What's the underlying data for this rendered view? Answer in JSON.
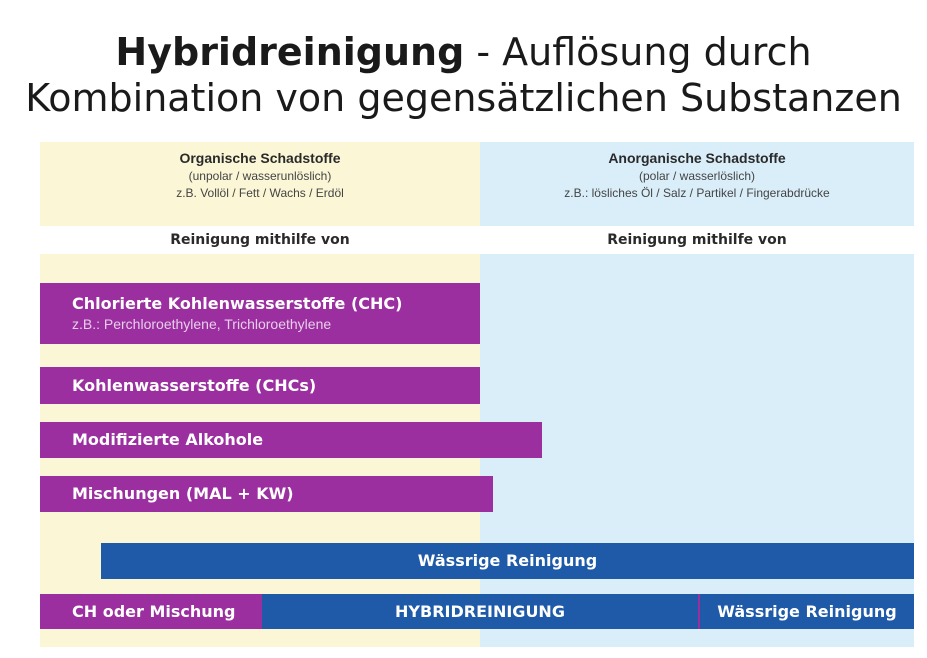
{
  "title": {
    "bold": "Hybridreinigung",
    "rest": " - Auflösung durch",
    "line2": "Kombination von gegensätzlichen Substanzen"
  },
  "left_column": {
    "heading": "Organische Schadstoffe",
    "sub1": "(unpolar / wasserunlöslich)",
    "sub2": "z.B. Vollöl / Fett / Wachs / Erdöl",
    "cleaning_label": "Reinigung mithilfe von"
  },
  "right_column": {
    "heading": "Anorganische Schadstoffe",
    "sub1": "(polar / wasserlöslich)",
    "sub2": "z.B.: lösliches Öl  / Salz  / Partikel  / Fingerabdrücke",
    "cleaning_label": "Reinigung mithilfe von"
  },
  "bars": {
    "chc": "Chlorierte Kohlenwasserstoffe (CHC)",
    "chc_sub": "z.B.: Perchloroethylene, Trichloroethylene",
    "kw": "Kohlenwasserstoffe (CHCs)",
    "mal": "Modifizierte Alkohole",
    "mix": "Mischungen (MAL + KW)",
    "aqueous": "Wässrige Reinigung",
    "ch_mix": "CH oder Mischung",
    "hybrid": "HYBRIDREINIGUNG",
    "aqueous2": "Wässrige Reinigung"
  },
  "colors": {
    "organic_bg": "#fbf6d6",
    "inorganic_bg": "#daeefa",
    "purple": "#9b2fa0",
    "blue": "#1e5aa8"
  }
}
